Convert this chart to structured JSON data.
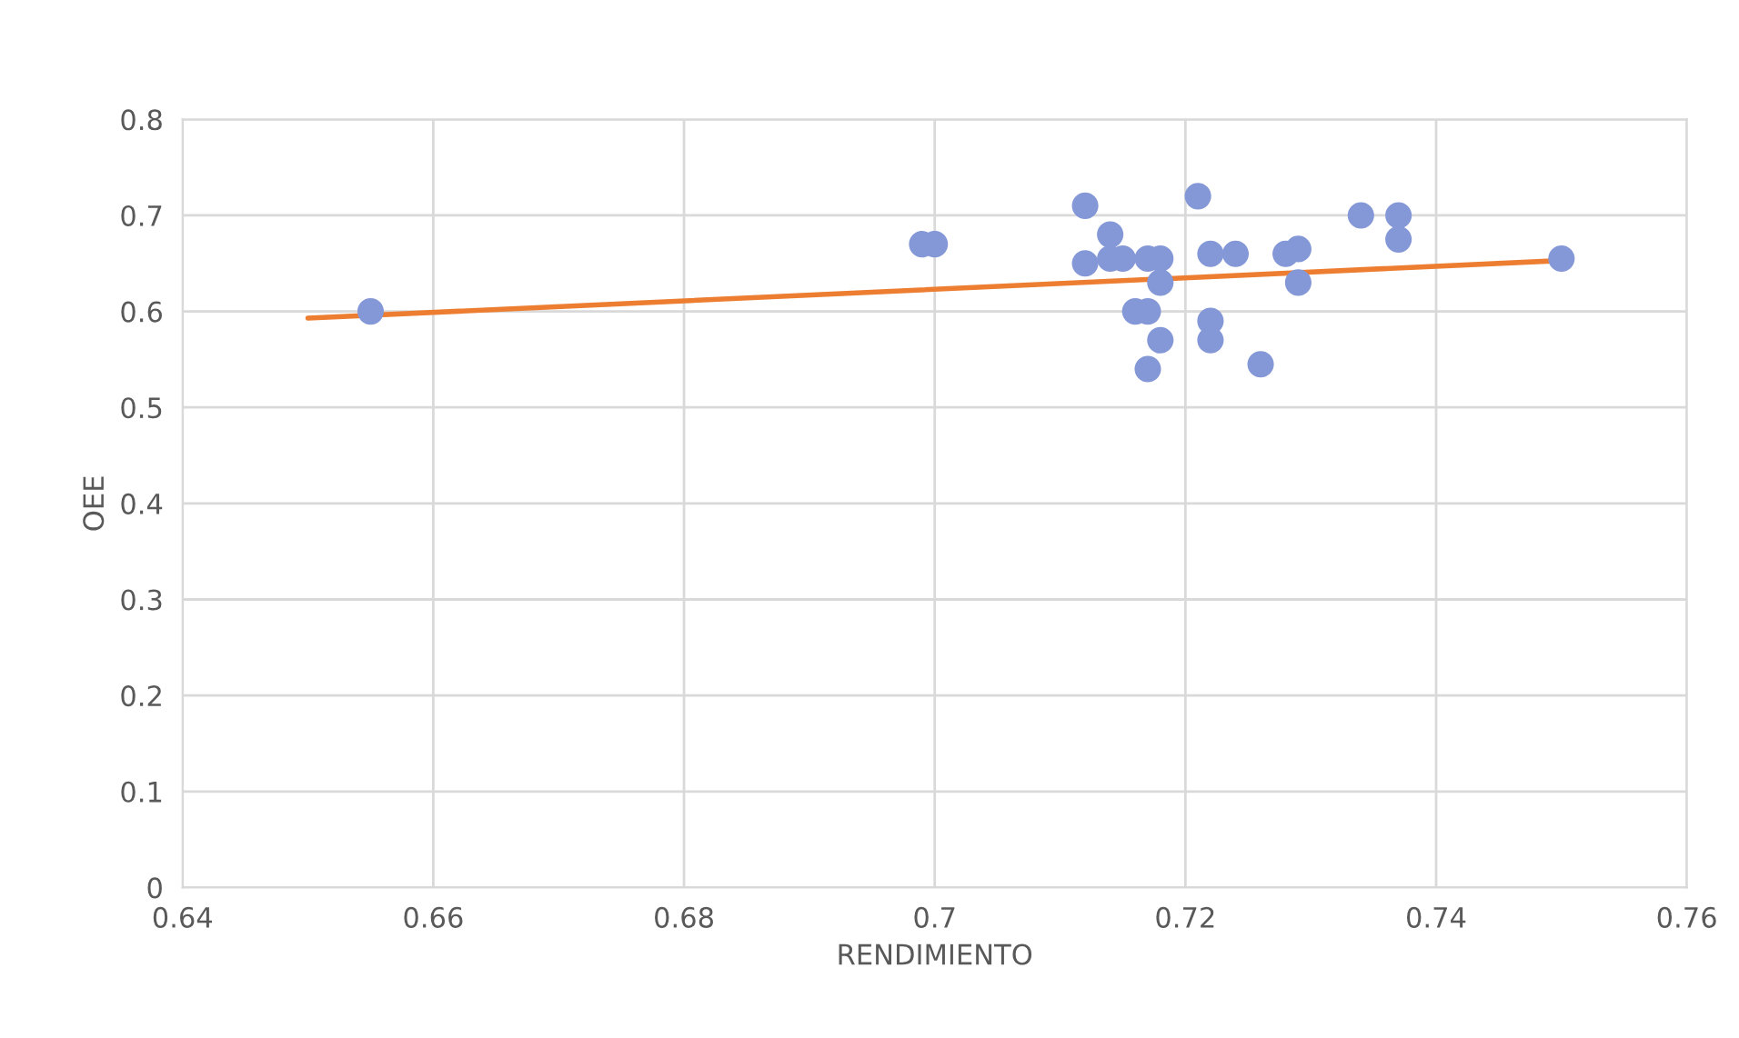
{
  "chart_data": {
    "type": "scatter",
    "xlabel": "RENDIMIENTO",
    "ylabel": "OEE",
    "series": [
      {
        "marker": "circle",
        "color": "#8497d6",
        "x": [
          0.655,
          0.699,
          0.7,
          0.712,
          0.712,
          0.714,
          0.714,
          0.715,
          0.717,
          0.718,
          0.718,
          0.716,
          0.717,
          0.718,
          0.717,
          0.721,
          0.722,
          0.724,
          0.722,
          0.722,
          0.726,
          0.728,
          0.729,
          0.729,
          0.734,
          0.737,
          0.737,
          0.75
        ],
        "values": [
          0.6,
          0.67,
          0.67,
          0.71,
          0.65,
          0.68,
          0.655,
          0.655,
          0.655,
          0.655,
          0.63,
          0.6,
          0.6,
          0.57,
          0.54,
          0.72,
          0.66,
          0.66,
          0.59,
          0.57,
          0.545,
          0.66,
          0.665,
          0.63,
          0.7,
          0.7,
          0.675,
          0.655
        ]
      },
      {
        "type": "line",
        "color": "#ed7d31",
        "x": [
          0.65,
          0.75
        ],
        "values": [
          0.593,
          0.653
        ]
      }
    ],
    "xlim": [
      0.64,
      0.76
    ],
    "xticks": [
      0.64,
      0.66,
      0.68,
      0.7,
      0.72,
      0.74,
      0.76
    ],
    "ylim": [
      0,
      0.8
    ],
    "yticks": [
      0,
      0.1,
      0.2,
      0.3,
      0.4,
      0.5,
      0.6,
      0.7,
      0.8
    ],
    "grid": true,
    "legend": false
  }
}
